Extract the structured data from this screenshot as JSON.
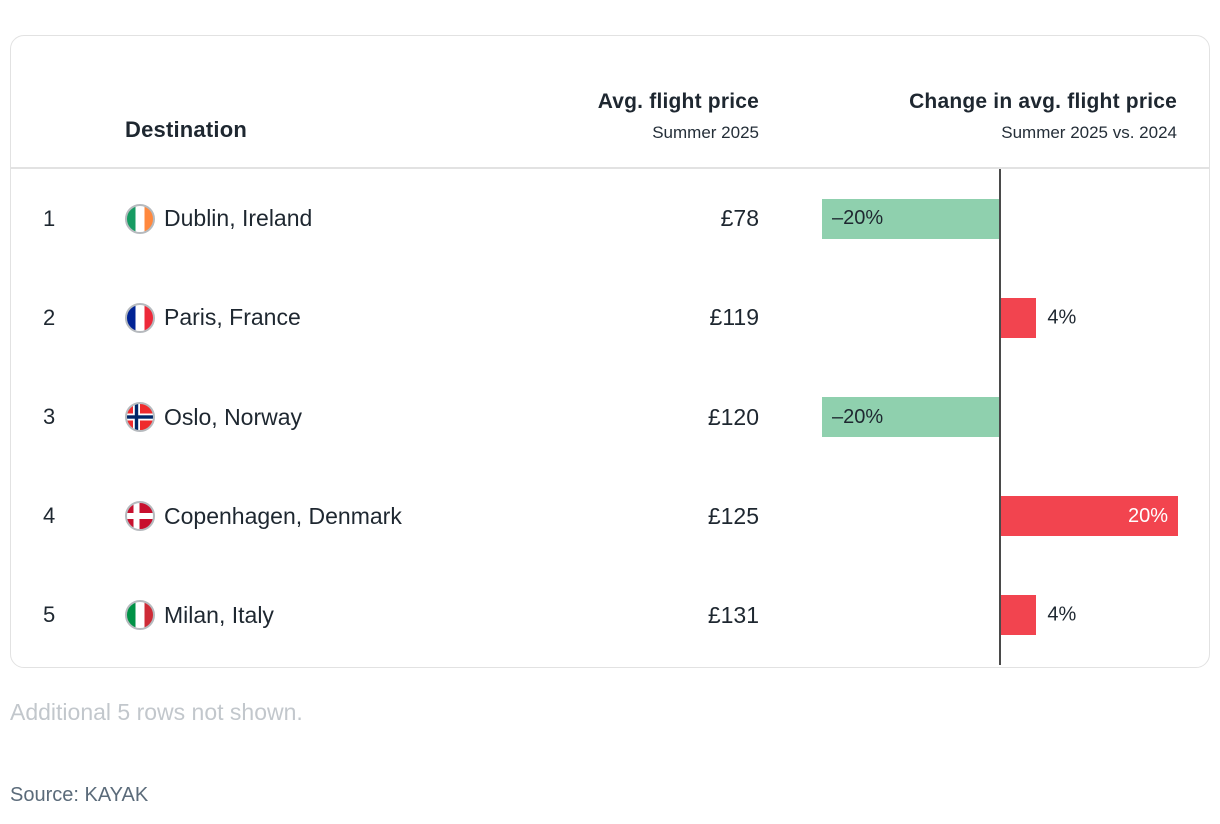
{
  "card": {
    "header": {
      "destination_label": "Destination",
      "price_title": "Avg. flight price",
      "price_subtitle": "Summer 2025",
      "change_title": "Change in avg. flight price",
      "change_subtitle": "Summer 2025 vs. 2024"
    },
    "rows": [
      {
        "rank": "1",
        "flag": "ireland-flag",
        "destination": "Dublin, Ireland",
        "price": "£78",
        "change_pct": -20,
        "change_label": "–20%"
      },
      {
        "rank": "2",
        "flag": "france-flag",
        "destination": "Paris, France",
        "price": "£119",
        "change_pct": 4,
        "change_label": "4%"
      },
      {
        "rank": "3",
        "flag": "norway-flag",
        "destination": "Oslo, Norway",
        "price": "£120",
        "change_pct": -20,
        "change_label": "–20%"
      },
      {
        "rank": "4",
        "flag": "denmark-flag",
        "destination": "Copenhagen, Denmark",
        "price": "£125",
        "change_pct": 20,
        "change_label": "20%"
      },
      {
        "rank": "5",
        "flag": "italy-flag",
        "destination": "Milan, Italy",
        "price": "£131",
        "change_pct": 4,
        "change_label": "4%"
      }
    ]
  },
  "notes": {
    "additional_rows": "Additional 5 rows not shown.",
    "source": "Source: KAYAK"
  },
  "chart_data": {
    "type": "bar",
    "orientation": "horizontal",
    "title": "Change in avg. flight price",
    "subtitle": "Summer 2025 vs. 2024",
    "categories": [
      "Dublin, Ireland",
      "Paris, France",
      "Oslo, Norway",
      "Copenhagen, Denmark",
      "Milan, Italy"
    ],
    "series": [
      {
        "name": "Change in avg. flight price (%) — Summer 2025 vs. 2024",
        "values": [
          -20,
          4,
          -20,
          20,
          4
        ]
      },
      {
        "name": "Avg. flight price (£) — Summer 2025",
        "values": [
          78,
          119,
          120,
          125,
          131
        ]
      }
    ],
    "value_labels": [
      "–20%",
      "4%",
      "–20%",
      "20%",
      "4%"
    ],
    "xlim": [
      -20,
      20
    ],
    "grid": false,
    "legend": false,
    "negative_color": "#8fd0ae",
    "positive_color": "#f2444f"
  },
  "colors": {
    "positive_bar": "#f2444f",
    "negative_bar": "#8fd0ae",
    "axis_line": "#4a4a4a",
    "text_dark": "#1e2730",
    "note_muted": "#c2c7cc",
    "source_text": "#5b6b7a",
    "card_border": "#e2e2e2"
  }
}
